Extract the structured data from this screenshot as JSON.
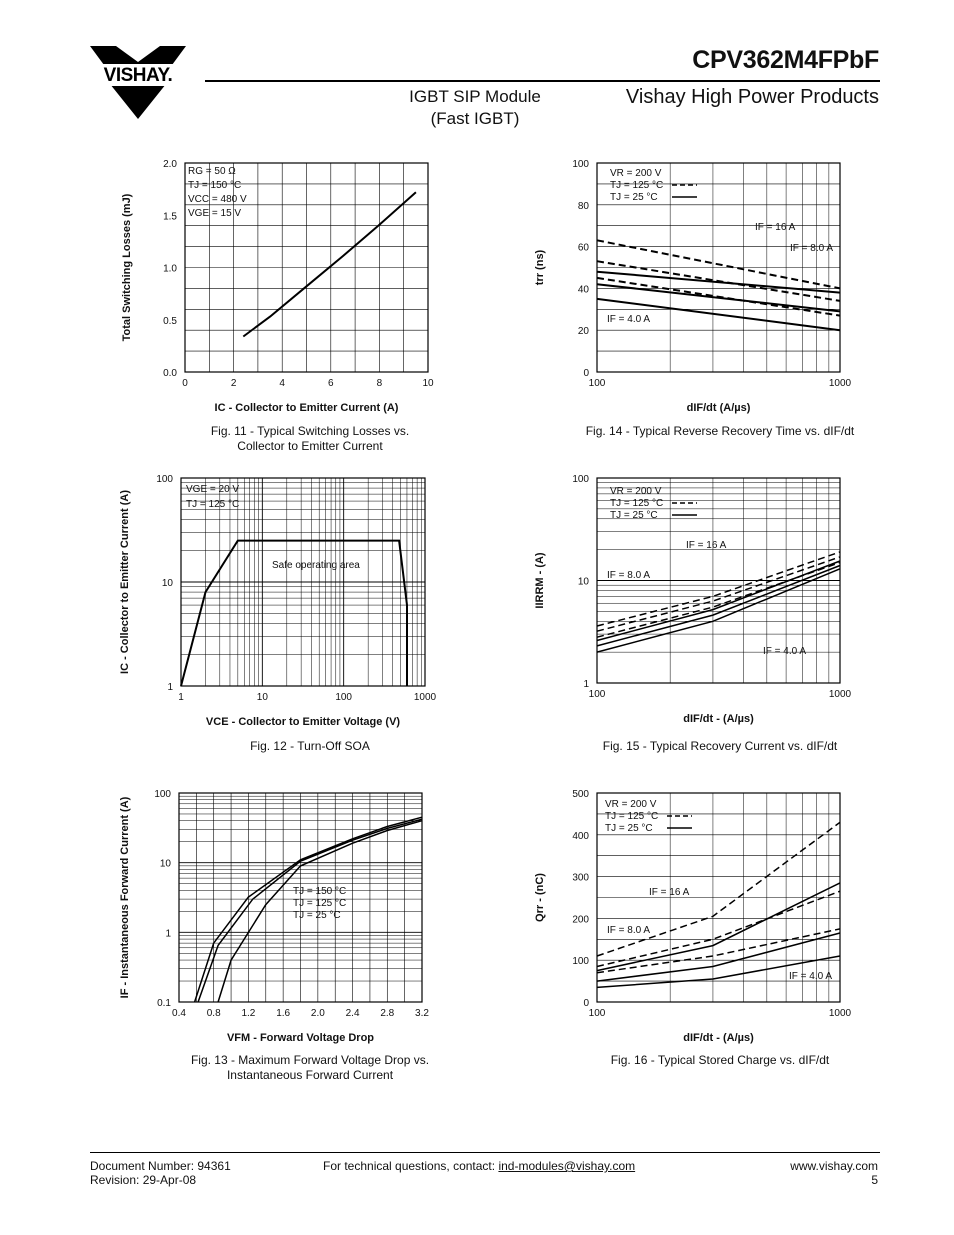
{
  "header": {
    "logo_text": "VISHAY.",
    "part_number": "CPV362M4FPbF",
    "product_type_lines": [
      "IGBT SIP Module",
      "(Fast IGBT)"
    ],
    "brand_line": "Vishay High Power Products"
  },
  "figures": [
    {
      "caption_lines": [
        "Fig. 11 - Typical Switching Losses vs.",
        "Collector to Emitter Current"
      ]
    },
    {
      "caption_lines": [
        "Fig. 14 - Typical Reverse Recovery Time vs. dIF/dt"
      ]
    },
    {
      "caption_lines": [
        "Fig. 12 - Turn-Off SOA"
      ]
    },
    {
      "caption_lines": [
        "Fig. 15 - Typical Recovery Current vs. dIF/dt"
      ]
    },
    {
      "caption_lines": [
        "Fig. 13 - Maximum Forward Voltage Drop vs.",
        "Instantaneous Forward Current"
      ]
    },
    {
      "caption_lines": [
        "Fig. 16 - Typical Stored Charge vs. dIF/dt"
      ]
    }
  ],
  "chart_data": [
    {
      "id": "fig11",
      "type": "line",
      "ylabel": "Total Switching Losses (mJ)",
      "xlabel": "IC - Collector to Emitter Current (A)",
      "xlim": [
        0,
        10
      ],
      "ylim": [
        0,
        2.0
      ],
      "x_ticks": [
        "0",
        "2",
        "4",
        "6",
        "8",
        "10"
      ],
      "y_ticks": [
        "0.0",
        "0.5",
        "1.0",
        "1.5",
        "2.0"
      ],
      "conditions": [
        "RG = 50 Ω",
        "TJ = 150 °C",
        "VCC = 480 V",
        "VGE = 15 V"
      ],
      "series": [
        {
          "x": [
            2.4,
            3.5,
            5.0,
            6.5,
            8.0,
            9.5
          ],
          "y": [
            0.34,
            0.53,
            0.82,
            1.11,
            1.41,
            1.72
          ]
        }
      ]
    },
    {
      "id": "fig14",
      "type": "line",
      "ylabel": "trr (ns)",
      "xlabel": "dIF/dt (A/µs)",
      "xscale": "log",
      "xlim": [
        100,
        1000
      ],
      "ylim": [
        0,
        100
      ],
      "x_ticks": [
        "100",
        "1000"
      ],
      "y_ticks": [
        "0",
        "20",
        "40",
        "60",
        "80",
        "100"
      ],
      "conditions": [
        "VR = 200 V",
        "TJ = 125 °C",
        "TJ = 25 °C"
      ],
      "annotations": [
        "IF = 16 A",
        "IF = 8.0 A",
        "IF = 4.0 A"
      ],
      "series": [
        {
          "x": [
            100,
            1000
          ],
          "y": [
            63,
            40
          ],
          "style": "dashed"
        },
        {
          "x": [
            100,
            1000
          ],
          "y": [
            53,
            34
          ],
          "style": "dashed"
        },
        {
          "x": [
            100,
            1000
          ],
          "y": [
            45,
            27
          ],
          "style": "dashed"
        },
        {
          "x": [
            100,
            1000
          ],
          "y": [
            48,
            38
          ],
          "style": "solid"
        },
        {
          "x": [
            100,
            1000
          ],
          "y": [
            42,
            29
          ],
          "style": "solid"
        },
        {
          "x": [
            100,
            1000
          ],
          "y": [
            35,
            20
          ],
          "style": "solid"
        }
      ]
    },
    {
      "id": "fig12",
      "type": "line",
      "ylabel": "IC - Collector to Emitter Current (A)",
      "xlabel": "VCE - Collector to Emitter Voltage (V)",
      "xscale": "log",
      "yscale": "log",
      "xlim": [
        1,
        1000
      ],
      "ylim": [
        1,
        100
      ],
      "x_ticks": [
        "1",
        "10",
        "100",
        "1000"
      ],
      "y_ticks": [
        "1",
        "10",
        "100"
      ],
      "conditions": [
        "VGE = 20 V",
        "TJ = 125 °C"
      ],
      "annotations": [
        "Safe operating area"
      ],
      "series": [
        {
          "x": [
            1,
            2,
            5,
            480,
            600,
            600
          ],
          "y": [
            1,
            8,
            25,
            25,
            6,
            1
          ]
        }
      ]
    },
    {
      "id": "fig15",
      "type": "line",
      "ylabel": "IIRRM - (A)",
      "xlabel": "dIF/dt - (A/µs)",
      "xscale": "log",
      "yscale": "log",
      "xlim": [
        100,
        1000
      ],
      "ylim": [
        1,
        100
      ],
      "x_ticks": [
        "100",
        "1000"
      ],
      "y_ticks": [
        "1",
        "10",
        "100"
      ],
      "conditions": [
        "VR = 200 V",
        "TJ = 125 °C",
        "TJ = 25 °C"
      ],
      "annotations": [
        "IF = 16 A",
        "IF = 8.0 A",
        "IF = 4.0 A"
      ],
      "series": [
        {
          "x": [
            100,
            300,
            1000
          ],
          "y": [
            3.6,
            7,
            19
          ],
          "style": "dashed"
        },
        {
          "x": [
            100,
            300,
            1000
          ],
          "y": [
            3.2,
            6.3,
            17
          ],
          "style": "dashed"
        },
        {
          "x": [
            100,
            300,
            1000
          ],
          "y": [
            2.8,
            5.5,
            15
          ],
          "style": "dashed"
        },
        {
          "x": [
            100,
            300,
            1000
          ],
          "y": [
            2.6,
            5.2,
            15.5
          ],
          "style": "solid"
        },
        {
          "x": [
            100,
            300,
            1000
          ],
          "y": [
            2.3,
            4.6,
            14
          ],
          "style": "solid"
        },
        {
          "x": [
            100,
            300,
            1000
          ],
          "y": [
            2.0,
            4.0,
            13
          ],
          "style": "solid"
        }
      ]
    },
    {
      "id": "fig13",
      "type": "line",
      "ylabel": "IF - Instantaneous Forward Current (A)",
      "xlabel": "VFM - Forward Voltage Drop",
      "yscale": "log",
      "xlim": [
        0.4,
        3.2
      ],
      "ylim": [
        0.1,
        100
      ],
      "x_ticks": [
        "0.4",
        "0.8",
        "1.2",
        "1.6",
        "2.0",
        "2.4",
        "2.8",
        "3.2"
      ],
      "y_ticks": [
        "0.1",
        "1",
        "10",
        "100"
      ],
      "conditions": [
        "TJ = 150 °C",
        "TJ = 125 °C",
        "TJ = 25 °C"
      ],
      "series": [
        {
          "x": [
            0.58,
            0.8,
            1.2,
            1.8,
            2.4,
            2.8,
            3.2
          ],
          "y": [
            0.1,
            0.7,
            3.2,
            11,
            22,
            33,
            45
          ]
        },
        {
          "x": [
            0.62,
            0.85,
            1.25,
            1.8,
            2.4,
            2.8,
            3.2
          ],
          "y": [
            0.1,
            0.65,
            3,
            10.5,
            21,
            31,
            42
          ]
        },
        {
          "x": [
            0.85,
            1.0,
            1.4,
            1.8,
            2.4,
            2.8,
            3.2
          ],
          "y": [
            0.1,
            0.4,
            2.5,
            9,
            19,
            29,
            40
          ]
        }
      ]
    },
    {
      "id": "fig16",
      "type": "line",
      "ylabel": "Qrr - (nC)",
      "xlabel": "dIF/dt - (A/µs)",
      "xscale": "log",
      "xlim": [
        100,
        1000
      ],
      "ylim": [
        0,
        500
      ],
      "x_ticks": [
        "100",
        "1000"
      ],
      "y_ticks": [
        "0",
        "100",
        "200",
        "300",
        "400",
        "500"
      ],
      "conditions": [
        "VR = 200 V",
        "TJ = 125 °C",
        "TJ = 25 °C"
      ],
      "annotations": [
        "IF = 16 A",
        "IF = 8.0 A",
        "IF = 4.0 A"
      ],
      "series": [
        {
          "x": [
            100,
            300,
            1000
          ],
          "y": [
            110,
            205,
            430
          ],
          "style": "dashed"
        },
        {
          "x": [
            100,
            300,
            1000
          ],
          "y": [
            85,
            150,
            265
          ],
          "style": "dashed"
        },
        {
          "x": [
            100,
            300,
            1000
          ],
          "y": [
            70,
            110,
            175
          ],
          "style": "dashed"
        },
        {
          "x": [
            100,
            300,
            1000
          ],
          "y": [
            75,
            135,
            285
          ],
          "style": "solid"
        },
        {
          "x": [
            100,
            300,
            1000
          ],
          "y": [
            50,
            85,
            165
          ],
          "style": "solid"
        },
        {
          "x": [
            100,
            300,
            1000
          ],
          "y": [
            35,
            55,
            110
          ],
          "style": "solid"
        }
      ]
    }
  ],
  "footer": {
    "doc_number": "Document Number: 94361",
    "revision": "Revision: 29-Apr-08",
    "contact_prefix": "For technical questions, contact: ",
    "contact_email": "ind-modules@vishay.com",
    "website": "www.vishay.com",
    "page_number": "5"
  }
}
